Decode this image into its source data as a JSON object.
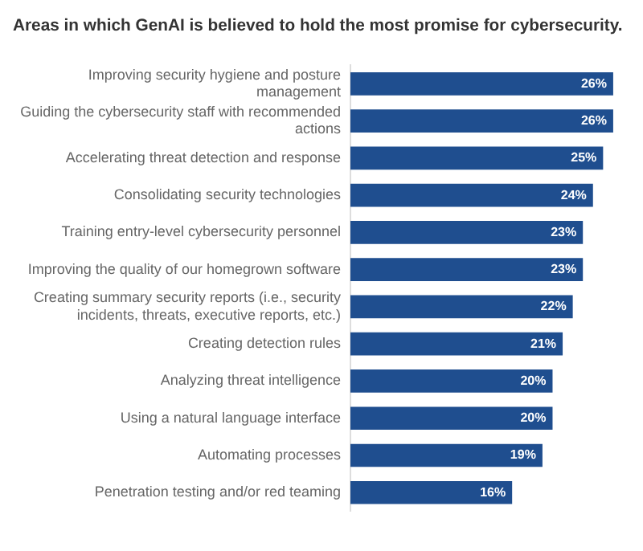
{
  "chart_data": {
    "type": "bar",
    "orientation": "horizontal",
    "title": "Areas in which GenAI is believed to hold the most promise for cybersecurity.",
    "categories": [
      "Improving security hygiene and posture management",
      "Guiding the cybersecurity staff with recommended actions",
      "Accelerating threat detection and response",
      "Consolidating security technologies",
      "Training entry-level cybersecurity personnel",
      "Improving the quality of our homegrown software",
      "Creating summary security reports (i.e., security incidents, threats, executive reports, etc.)",
      "Creating detection rules",
      "Analyzing threat intelligence",
      "Using a natural language interface",
      "Automating processes",
      "Penetration testing and/or red teaming"
    ],
    "values": [
      26,
      26,
      25,
      24,
      23,
      23,
      22,
      21,
      20,
      20,
      19,
      16
    ],
    "value_labels": [
      "26%",
      "26%",
      "25%",
      "24%",
      "23%",
      "23%",
      "22%",
      "21%",
      "20%",
      "20%",
      "19%",
      "16%"
    ],
    "color": "#1f4e8f",
    "grid": false,
    "legend": false
  }
}
